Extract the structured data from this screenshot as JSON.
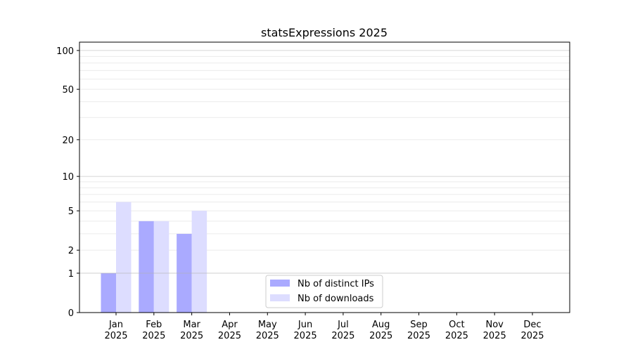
{
  "chart_data": {
    "type": "bar",
    "title": "statsExpressions 2025",
    "xlabel": "",
    "ylabel": "",
    "yscale": "log(1+y)",
    "ylim": [
      0,
      116
    ],
    "yticks": [
      0,
      1,
      2,
      5,
      10,
      20,
      50,
      100
    ],
    "grid": true,
    "legend_position": "lower-center",
    "categories": [
      "Jan\n2025",
      "Feb\n2025",
      "Mar\n2025",
      "Apr\n2025",
      "May\n2025",
      "Jun\n2025",
      "Jul\n2025",
      "Aug\n2025",
      "Sep\n2025",
      "Oct\n2025",
      "Nov\n2025",
      "Dec\n2025"
    ],
    "series": [
      {
        "name": "Nb of distinct IPs",
        "color": "#aaaaff",
        "values": [
          1,
          4,
          3,
          0,
          0,
          0,
          0,
          0,
          0,
          0,
          0,
          0
        ]
      },
      {
        "name": "Nb of downloads",
        "color": "#ddddff",
        "values": [
          6,
          4,
          5,
          0,
          0,
          0,
          0,
          0,
          0,
          0,
          0,
          0
        ]
      }
    ]
  }
}
